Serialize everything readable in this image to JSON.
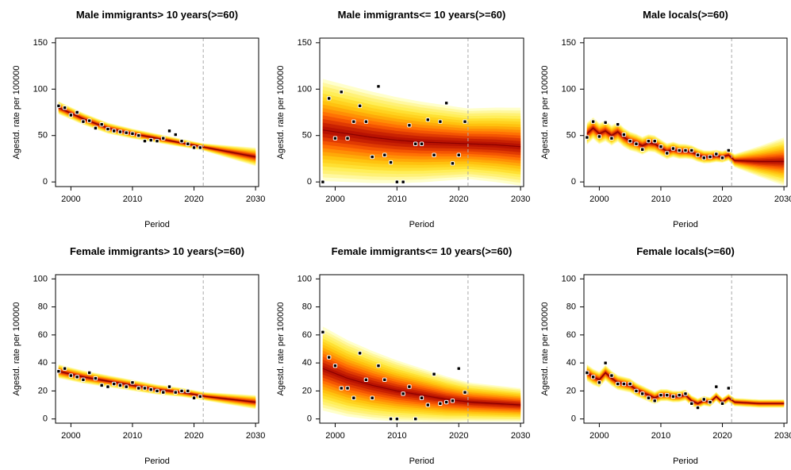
{
  "colors": {
    "fan": [
      "#ffffcc",
      "#fff8a0",
      "#fff176",
      "#ffee58",
      "#ffe033",
      "#ffd21f",
      "#ffc20f",
      "#ffa908",
      "#ff8f05",
      "#ff7203",
      "#f45502",
      "#e03a02",
      "#c92202",
      "#b81202"
    ],
    "median": "#8b0000",
    "point_fill": "#ffffff",
    "point_stroke": "#000000",
    "cutoff_line": "#aaaaaa"
  },
  "chart_data": [
    {
      "type": "line",
      "title": "Male immigrants> 10 years(>=60)",
      "xlabel": "Period",
      "ylabel": "Agestd. rate per 100000",
      "xlim": [
        1997.5,
        2030.5
      ],
      "ylim": [
        -5,
        155
      ],
      "xticks": [
        "2000",
        "2010",
        "2020",
        "2030"
      ],
      "yticks": [
        "0",
        "50",
        "100",
        "150"
      ],
      "cutoff_year": 2021.5,
      "observed": {
        "x": [
          1998,
          1999,
          2000,
          2001,
          2002,
          2003,
          2004,
          2005,
          2006,
          2007,
          2008,
          2009,
          2010,
          2011,
          2012,
          2013,
          2014,
          2015,
          2016,
          2017,
          2018,
          2019,
          2020,
          2021
        ],
        "y": [
          82,
          80,
          72,
          75,
          65,
          66,
          58,
          62,
          57,
          55,
          54,
          53,
          52,
          50,
          44,
          45,
          44,
          47,
          55,
          51,
          44,
          41,
          37,
          37
        ]
      },
      "median": {
        "x": [
          1998,
          2002,
          2006,
          2010,
          2014,
          2018,
          2022,
          2026,
          2030
        ],
        "y": [
          80,
          68,
          58,
          52,
          47,
          42,
          37,
          32,
          27
        ]
      },
      "spread_obs": [
        7,
        4
      ],
      "spread_forecast": 10
    },
    {
      "type": "line",
      "title": "Male immigrants<= 10 years(>=60)",
      "xlabel": "Period",
      "ylabel": "Agestd. rate per 100000",
      "xlim": [
        1997.5,
        2030.5
      ],
      "ylim": [
        -5,
        155
      ],
      "xticks": [
        "2000",
        "2010",
        "2020",
        "2030"
      ],
      "yticks": [
        "0",
        "50",
        "100",
        "150"
      ],
      "cutoff_year": 2021.5,
      "observed": {
        "x": [
          1998,
          1999,
          2000,
          2001,
          2002,
          2003,
          2004,
          2005,
          2006,
          2007,
          2008,
          2009,
          2010,
          2011,
          2012,
          2013,
          2014,
          2015,
          2016,
          2017,
          2018,
          2019,
          2020,
          2021
        ],
        "y": [
          0,
          90,
          47,
          97,
          47,
          65,
          82,
          65,
          27,
          103,
          29,
          21,
          0,
          0,
          61,
          41,
          41,
          67,
          29,
          65,
          85,
          20,
          29,
          65
        ]
      },
      "median": {
        "x": [
          1998,
          2002,
          2006,
          2010,
          2014,
          2018,
          2022,
          2026,
          2030
        ],
        "y": [
          56,
          52,
          48,
          45,
          43,
          42,
          41,
          40,
          38
        ]
      },
      "spread_obs": [
        55,
        38
      ],
      "spread_forecast": 42
    },
    {
      "type": "line",
      "title": "Male locals(>=60)",
      "xlabel": "Period",
      "ylabel": "Agestd. rate per 100000",
      "xlim": [
        1997.5,
        2030.5
      ],
      "ylim": [
        -5,
        155
      ],
      "xticks": [
        "2000",
        "2010",
        "2020",
        "2030"
      ],
      "yticks": [
        "0",
        "50",
        "100",
        "150"
      ],
      "cutoff_year": 2021.5,
      "observed": {
        "x": [
          1998,
          1999,
          2000,
          2001,
          2002,
          2003,
          2004,
          2005,
          2006,
          2007,
          2008,
          2009,
          2010,
          2011,
          2012,
          2013,
          2014,
          2015,
          2016,
          2017,
          2018,
          2019,
          2020,
          2021
        ],
        "y": [
          48,
          65,
          49,
          64,
          47,
          62,
          51,
          44,
          41,
          35,
          44,
          44,
          38,
          31,
          36,
          34,
          34,
          34,
          29,
          26,
          27,
          30,
          26,
          34
        ]
      },
      "median": {
        "x": [
          1998,
          1999,
          2000,
          2001,
          2002,
          2003,
          2004,
          2005,
          2006,
          2007,
          2008,
          2009,
          2010,
          2011,
          2012,
          2013,
          2014,
          2015,
          2016,
          2017,
          2018,
          2019,
          2020,
          2021,
          2022,
          2026,
          2030
        ],
        "y": [
          52,
          58,
          52,
          55,
          50,
          54,
          48,
          44,
          42,
          39,
          42,
          41,
          37,
          33,
          35,
          33,
          33,
          32,
          29,
          27,
          27,
          28,
          27,
          29,
          23,
          22,
          22
        ]
      },
      "spread_obs": [
        12,
        6
      ],
      "spread_forecast": 26
    },
    {
      "type": "line",
      "title": "Female immigrants> 10 years(>=60)",
      "xlabel": "Period",
      "ylabel": "Agestd. rate per 100000",
      "xlim": [
        1997.5,
        2030.5
      ],
      "ylim": [
        -3,
        103
      ],
      "xticks": [
        "2000",
        "2010",
        "2020",
        "2030"
      ],
      "yticks": [
        "0",
        "20",
        "40",
        "60",
        "80",
        "100"
      ],
      "cutoff_year": 2021.5,
      "observed": {
        "x": [
          1998,
          1999,
          2000,
          2001,
          2002,
          2003,
          2004,
          2005,
          2006,
          2007,
          2008,
          2009,
          2010,
          2011,
          2012,
          2013,
          2014,
          2015,
          2016,
          2017,
          2018,
          2019,
          2020,
          2021
        ],
        "y": [
          34,
          36,
          31,
          30,
          28,
          33,
          29,
          24,
          23,
          25,
          24,
          23,
          26,
          22,
          22,
          21,
          20,
          19,
          23,
          19,
          20,
          20,
          15,
          16
        ]
      },
      "median": {
        "x": [
          1998,
          2002,
          2006,
          2010,
          2014,
          2018,
          2022,
          2026,
          2030
        ],
        "y": [
          34,
          30,
          27,
          24,
          21,
          19,
          16,
          14,
          12
        ]
      },
      "spread_obs": [
        5,
        3
      ],
      "spread_forecast": 5
    },
    {
      "type": "line",
      "title": "Female immigrants<= 10 years(>=60)",
      "xlabel": "Period",
      "ylabel": "Agestd. rate per 100000",
      "xlim": [
        1997.5,
        2030.5
      ],
      "ylim": [
        -3,
        103
      ],
      "xticks": [
        "2000",
        "2010",
        "2020",
        "2030"
      ],
      "yticks": [
        "0",
        "20",
        "40",
        "60",
        "80",
        "100"
      ],
      "cutoff_year": 2021.5,
      "observed": {
        "x": [
          1998,
          1999,
          2000,
          2001,
          2002,
          2003,
          2004,
          2005,
          2006,
          2007,
          2008,
          2009,
          2010,
          2011,
          2012,
          2013,
          2014,
          2015,
          2016,
          2017,
          2018,
          2019,
          2020,
          2021
        ],
        "y": [
          62,
          44,
          38,
          22,
          22,
          15,
          47,
          28,
          15,
          38,
          28,
          0,
          0,
          18,
          23,
          0,
          15,
          10,
          32,
          11,
          12,
          13,
          36,
          19
        ]
      },
      "median": {
        "x": [
          1998,
          2002,
          2006,
          2010,
          2014,
          2018,
          2022,
          2026,
          2030
        ],
        "y": [
          36,
          29,
          24,
          20,
          17,
          14,
          12,
          11,
          10
        ]
      },
      "spread_obs": [
        30,
        14
      ],
      "spread_forecast": 12
    },
    {
      "type": "line",
      "title": "Female locals(>=60)",
      "xlabel": "Period",
      "ylabel": "Agestd. rate per 100000",
      "xlim": [
        1997.5,
        2030.5
      ],
      "ylim": [
        -3,
        103
      ],
      "xticks": [
        "2000",
        "2010",
        "2020",
        "2030"
      ],
      "yticks": [
        "0",
        "20",
        "40",
        "60",
        "80",
        "100"
      ],
      "cutoff_year": 2021.5,
      "observed": {
        "x": [
          1998,
          1999,
          2000,
          2001,
          2002,
          2003,
          2004,
          2005,
          2006,
          2007,
          2008,
          2009,
          2010,
          2011,
          2012,
          2013,
          2014,
          2015,
          2016,
          2017,
          2018,
          2019,
          2020,
          2021
        ],
        "y": [
          33,
          30,
          26,
          40,
          31,
          25,
          25,
          25,
          20,
          18,
          15,
          13,
          17,
          17,
          16,
          17,
          18,
          11,
          8,
          14,
          12,
          23,
          11,
          22
        ]
      },
      "median": {
        "x": [
          1998,
          1999,
          2000,
          2001,
          2002,
          2003,
          2004,
          2005,
          2006,
          2007,
          2008,
          2009,
          2010,
          2011,
          2012,
          2013,
          2014,
          2015,
          2016,
          2017,
          2018,
          2019,
          2020,
          2021,
          2022,
          2026,
          2030
        ],
        "y": [
          33,
          30,
          28,
          33,
          29,
          26,
          25,
          24,
          21,
          19,
          17,
          15,
          17,
          17,
          16,
          16,
          17,
          13,
          11,
          13,
          12,
          16,
          12,
          15,
          12,
          11,
          11
        ]
      },
      "spread_obs": [
        6,
        3
      ],
      "spread_forecast": 3
    }
  ]
}
